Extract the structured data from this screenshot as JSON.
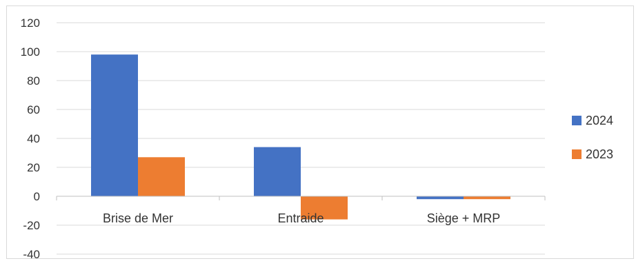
{
  "chart_data": {
    "type": "bar",
    "categories": [
      "Brise de Mer",
      "Entraide",
      "Siège + MRP"
    ],
    "series": [
      {
        "name": "2024",
        "values": [
          98,
          34,
          -2
        ],
        "color": "#4472C4"
      },
      {
        "name": "2023",
        "values": [
          27,
          -16,
          -2
        ],
        "color": "#ED7D31"
      }
    ],
    "ylim": [
      -40,
      120
    ],
    "yticks": [
      120,
      100,
      80,
      60,
      40,
      20,
      0,
      -20,
      -40
    ],
    "grid": true,
    "legend": "right",
    "title": "",
    "xlabel": "",
    "ylabel": ""
  }
}
